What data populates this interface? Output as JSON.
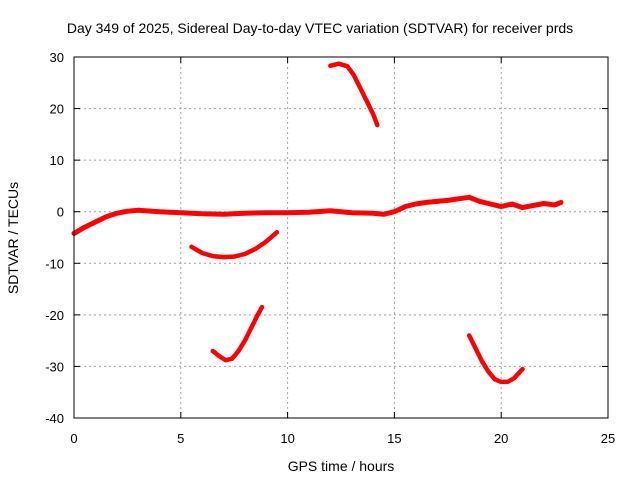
{
  "chart_data": {
    "type": "line",
    "title": "Day 349 of 2025, Sidereal Day-to-day VTEC variation (SDTVAR) for receiver prds",
    "xlabel": "GPS time / hours",
    "ylabel": "SDTVAR / TECUs",
    "xlim": [
      0,
      25
    ],
    "ylim": [
      -40,
      30
    ],
    "xticks": [
      0,
      5,
      10,
      15,
      20,
      25
    ],
    "yticks": [
      -40,
      -30,
      -20,
      -10,
      0,
      10,
      20,
      30
    ],
    "grid": true,
    "color": "#ff0000",
    "series": [
      {
        "name": "near-zero trace",
        "x": [
          0,
          0.5,
          1,
          1.5,
          2,
          2.5,
          3,
          4,
          5,
          6,
          7,
          8,
          9,
          10,
          11,
          12,
          13,
          14,
          14.5,
          15,
          15.5,
          16,
          16.5,
          17,
          17.5,
          18,
          18.5,
          19,
          19.5,
          20,
          20.5,
          21,
          21.5,
          22,
          22.5,
          22.8
        ],
        "y": [
          -4.2,
          -3,
          -2,
          -1,
          -0.3,
          0.1,
          0.3,
          0,
          -0.2,
          -0.4,
          -0.5,
          -0.3,
          -0.2,
          -0.2,
          -0.1,
          0.2,
          -0.2,
          -0.3,
          -0.5,
          0,
          1,
          1.5,
          1.8,
          2,
          2.2,
          2.5,
          2.8,
          2,
          1.5,
          1,
          1.5,
          0.8,
          1.2,
          1.6,
          1.3,
          1.8
        ]
      },
      {
        "name": "arc 5.5-9.5h",
        "x": [
          5.5,
          6,
          6.5,
          7,
          7.5,
          8,
          8.5,
          9,
          9.5
        ],
        "y": [
          -6.8,
          -8,
          -8.6,
          -8.8,
          -8.7,
          -8.2,
          -7.2,
          -5.8,
          -4
        ]
      },
      {
        "name": "arc 6.5-8.8h",
        "x": [
          6.5,
          6.8,
          7.1,
          7.4,
          7.7,
          8,
          8.3,
          8.6,
          8.8
        ],
        "y": [
          -27,
          -28,
          -28.8,
          -28.5,
          -27,
          -25,
          -22.5,
          -20,
          -18.5
        ]
      },
      {
        "name": "arc 12-14.2h",
        "x": [
          12,
          12.4,
          12.8,
          13.1,
          13.4,
          13.7,
          14,
          14.2
        ],
        "y": [
          28.3,
          28.7,
          28.2,
          26.5,
          24,
          21.5,
          19,
          16.8
        ]
      },
      {
        "name": "arc 18.5-21h",
        "x": [
          18.5,
          18.8,
          19.1,
          19.4,
          19.7,
          20,
          20.3,
          20.6,
          21
        ],
        "y": [
          -24,
          -26.5,
          -29,
          -31,
          -32.5,
          -33,
          -33,
          -32.3,
          -30.5
        ]
      }
    ]
  }
}
